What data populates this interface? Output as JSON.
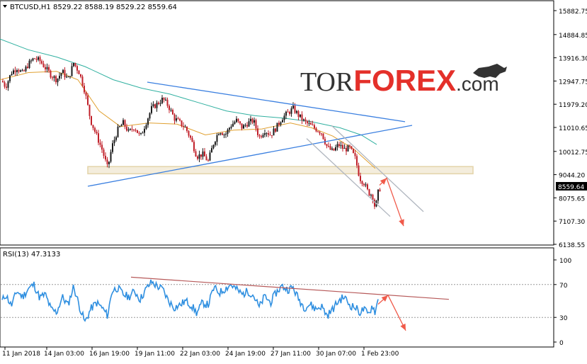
{
  "chart_data": [
    {
      "type": "candlestick",
      "symbol": "BTCUSD,H1",
      "ohlc_label": "8529.22 8588.19 8529.22 8559.64",
      "title": "BTCUSD,H1  8529.22 8588.19 8529.22 8559.64",
      "current_price_label": "8559.64",
      "ylim": [
        6138.55,
        15882.75
      ],
      "y_ticks": [
        15882.75,
        14884.85,
        13916.3,
        12947.75,
        11979.2,
        11010.65,
        10012.75,
        9044.2,
        8075.65,
        7107.3,
        6138.55
      ],
      "y_tick_labels": [
        "15882.75",
        "14884.85",
        "13916.30",
        "12947.75",
        "11979.20",
        "11010.65",
        "10012.75",
        "9044.20",
        "8075.65",
        "7107.30",
        "6138.55"
      ],
      "price_series": [
        [
          0,
          13100
        ],
        [
          8,
          12700
        ],
        [
          16,
          13300
        ],
        [
          24,
          13500
        ],
        [
          32,
          13250
        ],
        [
          40,
          13650
        ],
        [
          48,
          13900
        ],
        [
          56,
          13800
        ],
        [
          64,
          13500
        ],
        [
          72,
          13200
        ],
        [
          80,
          13000
        ],
        [
          88,
          13350
        ],
        [
          96,
          13000
        ],
        [
          104,
          13700
        ],
        [
          112,
          13300
        ],
        [
          120,
          12500
        ],
        [
          128,
          11300
        ],
        [
          136,
          10700
        ],
        [
          144,
          10100
        ],
        [
          152,
          9300
        ],
        [
          158,
          10200
        ],
        [
          166,
          10900
        ],
        [
          174,
          11200
        ],
        [
          182,
          10800
        ],
        [
          190,
          11050
        ],
        [
          198,
          10600
        ],
        [
          206,
          11200
        ],
        [
          214,
          11800
        ],
        [
          222,
          12000
        ],
        [
          230,
          12200
        ],
        [
          238,
          11900
        ],
        [
          246,
          11400
        ],
        [
          254,
          11200
        ],
        [
          262,
          11000
        ],
        [
          270,
          10500
        ],
        [
          278,
          9800
        ],
        [
          286,
          9900
        ],
        [
          294,
          9600
        ],
        [
          302,
          10400
        ],
        [
          310,
          10900
        ],
        [
          318,
          10700
        ],
        [
          326,
          11100
        ],
        [
          334,
          11300
        ],
        [
          342,
          11000
        ],
        [
          350,
          11200
        ],
        [
          358,
          11300
        ],
        [
          366,
          10600
        ],
        [
          374,
          10900
        ],
        [
          382,
          10700
        ],
        [
          390,
          11000
        ],
        [
          398,
          11400
        ],
        [
          406,
          11600
        ],
        [
          414,
          11800
        ],
        [
          422,
          11500
        ],
        [
          430,
          11250
        ],
        [
          438,
          11100
        ],
        [
          446,
          10950
        ],
        [
          454,
          10800
        ],
        [
          462,
          10200
        ],
        [
          470,
          10000
        ],
        [
          478,
          10300
        ],
        [
          486,
          10100
        ],
        [
          494,
          10150
        ],
        [
          502,
          9700
        ],
        [
          508,
          8900
        ],
        [
          514,
          8700
        ],
        [
          520,
          8300
        ],
        [
          526,
          8200
        ],
        [
          530,
          7600
        ],
        [
          534,
          8300
        ],
        [
          538,
          8559.64
        ]
      ],
      "ma_fast": [
        [
          0,
          13000
        ],
        [
          40,
          13300
        ],
        [
          80,
          13350
        ],
        [
          110,
          13000
        ],
        [
          140,
          11700
        ],
        [
          170,
          11050
        ],
        [
          210,
          11200
        ],
        [
          250,
          11150
        ],
        [
          290,
          10700
        ],
        [
          330,
          10900
        ],
        [
          370,
          10950
        ],
        [
          410,
          11200
        ],
        [
          440,
          11000
        ],
        [
          470,
          10650
        ],
        [
          500,
          10100
        ],
        [
          530,
          9300
        ]
      ],
      "ma_slow": [
        [
          0,
          14700
        ],
        [
          40,
          14250
        ],
        [
          80,
          13950
        ],
        [
          120,
          13550
        ],
        [
          160,
          13000
        ],
        [
          200,
          12650
        ],
        [
          240,
          12400
        ],
        [
          280,
          12050
        ],
        [
          320,
          11700
        ],
        [
          360,
          11500
        ],
        [
          400,
          11400
        ],
        [
          440,
          11250
        ],
        [
          480,
          11000
        ],
        [
          510,
          10700
        ],
        [
          532,
          10300
        ]
      ],
      "trendlines": [
        {
          "color": "#3a7fe0",
          "from": [
            208,
            12900
          ],
          "to": [
            572,
            11250
          ]
        },
        {
          "color": "#3a7fe0",
          "from": [
            124,
            8560
          ],
          "to": [
            582,
            11100
          ]
        },
        {
          "color": "#b0b6bf",
          "from": [
            433,
            10550
          ],
          "to": [
            551,
            7300
          ]
        },
        {
          "color": "#b0b6bf",
          "from": [
            468,
            11100
          ],
          "to": [
            598,
            7500
          ]
        }
      ],
      "support_zone": {
        "x0": 124,
        "x1": 668,
        "y0": 9080,
        "y1": 9380
      },
      "forecast_arrow": [
        [
          536,
          8600
        ],
        [
          546,
          8900
        ],
        [
          570,
          6900
        ]
      ],
      "watermark": {
        "prefix": "TOR",
        "emphasis": "FOREX",
        "suffix": ".com"
      }
    },
    {
      "type": "line",
      "indicator_label": "RSI(13) 47.3133",
      "ylim": [
        0,
        100
      ],
      "y_ticks": [
        100,
        70,
        30,
        0
      ],
      "y_tick_labels": [
        "100",
        "70",
        "30",
        "0"
      ],
      "levels": [
        70,
        30
      ],
      "rsi_series": [
        [
          0,
          45
        ],
        [
          8,
          58
        ],
        [
          16,
          44
        ],
        [
          24,
          62
        ],
        [
          32,
          55
        ],
        [
          40,
          65
        ],
        [
          48,
          70
        ],
        [
          56,
          54
        ],
        [
          64,
          58
        ],
        [
          72,
          40
        ],
        [
          80,
          36
        ],
        [
          88,
          55
        ],
        [
          96,
          45
        ],
        [
          104,
          68
        ],
        [
          112,
          44
        ],
        [
          120,
          24
        ],
        [
          128,
          40
        ],
        [
          136,
          48
        ],
        [
          144,
          42
        ],
        [
          152,
          32
        ],
        [
          158,
          62
        ],
        [
          166,
          66
        ],
        [
          174,
          58
        ],
        [
          182,
          55
        ],
        [
          190,
          62
        ],
        [
          198,
          52
        ],
        [
          206,
          64
        ],
        [
          214,
          73
        ],
        [
          222,
          68
        ],
        [
          230,
          64
        ],
        [
          238,
          50
        ],
        [
          246,
          42
        ],
        [
          254,
          45
        ],
        [
          262,
          50
        ],
        [
          270,
          45
        ],
        [
          278,
          35
        ],
        [
          286,
          48
        ],
        [
          294,
          45
        ],
        [
          302,
          66
        ],
        [
          310,
          60
        ],
        [
          318,
          65
        ],
        [
          326,
          70
        ],
        [
          334,
          64
        ],
        [
          342,
          58
        ],
        [
          350,
          62
        ],
        [
          358,
          57
        ],
        [
          366,
          42
        ],
        [
          374,
          56
        ],
        [
          382,
          48
        ],
        [
          390,
          60
        ],
        [
          398,
          68
        ],
        [
          406,
          64
        ],
        [
          414,
          66
        ],
        [
          422,
          52
        ],
        [
          430,
          42
        ],
        [
          438,
          46
        ],
        [
          446,
          40
        ],
        [
          454,
          44
        ],
        [
          462,
          32
        ],
        [
          470,
          40
        ],
        [
          478,
          50
        ],
        [
          486,
          55
        ],
        [
          494,
          45
        ],
        [
          502,
          42
        ],
        [
          508,
          36
        ],
        [
          514,
          40
        ],
        [
          520,
          33
        ],
        [
          526,
          45
        ],
        [
          530,
          36
        ],
        [
          534,
          52
        ]
      ],
      "trendline": {
        "color": "#b75a5a",
        "from": [
          185,
          79
        ],
        "to": [
          634,
          52
        ]
      },
      "forecast_arrow": [
        [
          534,
          46
        ],
        [
          548,
          57
        ],
        [
          573,
          14
        ]
      ]
    }
  ],
  "x_axis": {
    "ticks": [
      {
        "x": 7,
        "label": "11 Jan 2018"
      },
      {
        "x": 66,
        "label": "14 Jan 03:00"
      },
      {
        "x": 130,
        "label": "16 Jan 19:00"
      },
      {
        "x": 194,
        "label": "19 Jan 11:00"
      },
      {
        "x": 258,
        "label": "22 Jan 03:00"
      },
      {
        "x": 322,
        "label": "24 Jan 19:00"
      },
      {
        "x": 386,
        "label": "27 Jan 11:00"
      },
      {
        "x": 450,
        "label": "30 Jan 07:00"
      },
      {
        "x": 514,
        "label": "1 Feb 23:00"
      }
    ]
  },
  "colors": {
    "candle": "#c0202a",
    "candle_up": "#1a1a1a",
    "ma_fast": "#e0a030",
    "ma_slow": "#30b0a0",
    "rsi": "#2f8fe0",
    "forecast": "#f05a4a",
    "zone_fill": "#f3ecd9",
    "zone_stroke": "#e0cfa0",
    "watermark_dark": "#333333",
    "watermark_red": "#e4302a"
  }
}
